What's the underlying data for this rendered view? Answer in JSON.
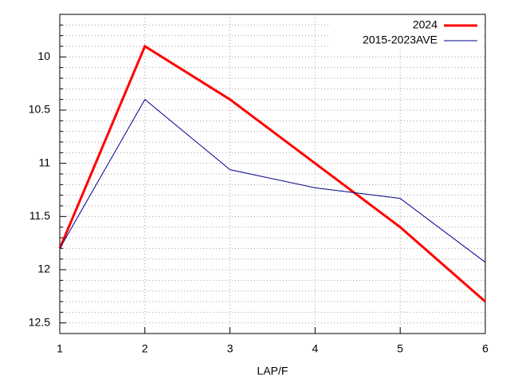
{
  "chart_data": {
    "type": "line",
    "x_label": "LAP/F",
    "x": [
      1,
      2,
      3,
      4,
      5,
      6
    ],
    "series": [
      {
        "name": "2024",
        "color": "#ff0000",
        "width": 3,
        "values": [
          11.8,
          9.9,
          10.4,
          11.0,
          11.6,
          12.3
        ]
      },
      {
        "name": "2015-2023AVE",
        "color": "#00008b",
        "width": 1,
        "values": [
          11.8,
          10.4,
          11.06,
          11.23,
          11.33,
          11.93
        ]
      }
    ],
    "xlim": [
      1,
      6
    ],
    "xticks": [
      1,
      2,
      3,
      4,
      5,
      6
    ],
    "ylim": [
      12.6,
      9.6
    ],
    "yticks": [
      10,
      10.5,
      11,
      11.5,
      12,
      12.5
    ],
    "yminorticks": [
      9.7,
      9.8,
      9.9,
      10.1,
      10.2,
      10.3,
      10.4,
      10.6,
      10.7,
      10.8,
      10.9,
      11.1,
      11.2,
      11.3,
      11.4,
      11.6,
      11.7,
      11.8,
      11.9,
      12.1,
      12.2,
      12.3,
      12.4,
      12.6
    ],
    "grid": true,
    "legend": "top-right"
  }
}
